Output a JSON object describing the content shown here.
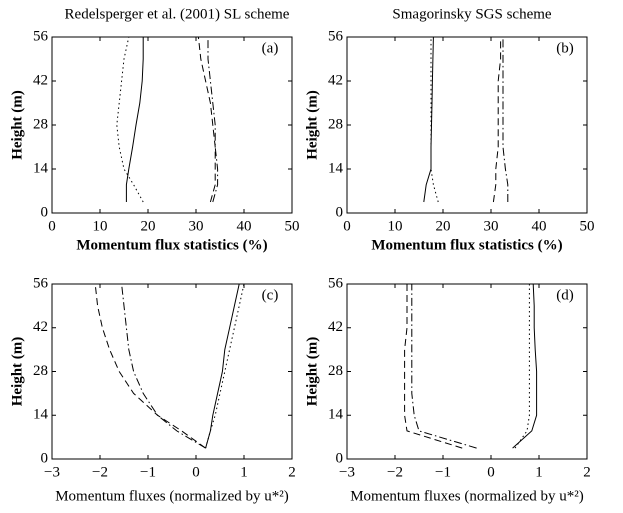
{
  "chart_data": [
    {
      "type": "line",
      "title": "Redelsperger et al. (2001) SL scheme",
      "panel_label": "(a)",
      "x_label": "Momentum flux statistics (%)",
      "y_label": "Height (m)",
      "y": [
        3.5,
        9,
        14,
        21,
        28,
        35,
        42,
        49,
        56
      ],
      "xlim": [
        0,
        50
      ],
      "xticks": [
        0,
        10,
        20,
        30,
        40,
        50
      ],
      "ylim": [
        0,
        56
      ],
      "yticks": [
        0,
        14,
        28,
        42,
        56
      ],
      "series": [
        {
          "color": "#000000",
          "dash": "solid",
          "values": [
            15.5,
            15.5,
            16,
            16.8,
            17.5,
            18.3,
            18.8,
            19,
            19
          ]
        },
        {
          "color": "#000000",
          "dash": "dotted",
          "values": [
            19,
            17,
            15,
            14,
            13.5,
            14,
            14.5,
            15,
            16
          ]
        },
        {
          "color": "#000000",
          "dash": "dashed",
          "values": [
            33,
            34,
            34,
            34,
            33.5,
            33,
            32,
            31,
            30.5
          ]
        },
        {
          "color": "#000000",
          "dash": "dashdot",
          "values": [
            33.5,
            34.5,
            34.5,
            34,
            34,
            33.5,
            33,
            32.5,
            32.5
          ]
        }
      ]
    },
    {
      "type": "line",
      "title": "Smagorinsky SGS scheme",
      "panel_label": "(b)",
      "x_label": "Momentum flux statistics (%)",
      "y_label": "Height (m)",
      "y": [
        3.5,
        9,
        14,
        21,
        28,
        35,
        42,
        49,
        56
      ],
      "xlim": [
        0,
        50
      ],
      "xticks": [
        0,
        10,
        20,
        30,
        40,
        50
      ],
      "ylim": [
        0,
        56
      ],
      "yticks": [
        0,
        14,
        28,
        42,
        56
      ],
      "series": [
        {
          "color": "#000000",
          "dash": "solid",
          "values": [
            16,
            16.5,
            17.5,
            17.5,
            17.6,
            17.7,
            17.8,
            17.9,
            18
          ]
        },
        {
          "color": "#000000",
          "dash": "dotted",
          "values": [
            19,
            18,
            17.5,
            17.5,
            17.5,
            17.5,
            17.5,
            17.5,
            17.5
          ]
        },
        {
          "color": "#000000",
          "dash": "dashed",
          "values": [
            30.5,
            31,
            31,
            31.5,
            31.5,
            31.5,
            31.5,
            32,
            32
          ]
        },
        {
          "color": "#000000",
          "dash": "dashdot",
          "values": [
            33.5,
            33.5,
            33,
            32.5,
            32.5,
            32.5,
            32.5,
            32.5,
            32.5
          ]
        }
      ]
    },
    {
      "type": "line",
      "panel_label": "(c)",
      "x_label": "Momentum fluxes (normalized by u*²)",
      "y_label": "Height (m)",
      "y": [
        3.5,
        9,
        14,
        21,
        28,
        35,
        42,
        49,
        56
      ],
      "xlim": [
        -3,
        2
      ],
      "xticks": [
        {
          "value": -3,
          "label": "−3"
        },
        {
          "value": -2,
          "label": "−2"
        },
        {
          "value": -1,
          "label": "−1"
        },
        0,
        1,
        2
      ],
      "ylim": [
        0,
        56
      ],
      "yticks": [
        0,
        14,
        28,
        42,
        56
      ],
      "series": [
        {
          "color": "#000000",
          "dash": "solid",
          "values": [
            0.2,
            0.3,
            0.35,
            0.45,
            0.55,
            0.6,
            0.7,
            0.8,
            0.9
          ]
        },
        {
          "color": "#000000",
          "dash": "dotted",
          "values": [
            0.2,
            0.3,
            0.4,
            0.5,
            0.6,
            0.7,
            0.8,
            0.9,
            1
          ]
        },
        {
          "color": "#000000",
          "dash": "dashed",
          "values": [
            0.2,
            -0.3,
            -0.8,
            -1.3,
            -1.6,
            -1.8,
            -1.95,
            -2.05,
            -2.1
          ]
        },
        {
          "color": "#000000",
          "dash": "dashdot",
          "values": [
            0.2,
            -0.4,
            -0.8,
            -1.1,
            -1.3,
            -1.4,
            -1.45,
            -1.5,
            -1.55
          ]
        }
      ]
    },
    {
      "type": "line",
      "panel_label": "(d)",
      "x_label": "Momentum fluxes (normalized by u*²)",
      "y_label": "Height (m)",
      "y": [
        3.5,
        9,
        14,
        21,
        28,
        35,
        42,
        49,
        56
      ],
      "xlim": [
        -3,
        2
      ],
      "xticks": [
        {
          "value": -3,
          "label": "−3"
        },
        {
          "value": -2,
          "label": "−2"
        },
        {
          "value": -1,
          "label": "−1"
        },
        0,
        1,
        2
      ],
      "ylim": [
        0,
        56
      ],
      "yticks": [
        0,
        14,
        28,
        42,
        56
      ],
      "series": [
        {
          "color": "#000000",
          "dash": "solid",
          "values": [
            0.45,
            0.85,
            0.95,
            0.95,
            0.95,
            0.92,
            0.9,
            0.9,
            0.88
          ]
        },
        {
          "color": "#000000",
          "dash": "dotted",
          "values": [
            0.5,
            0.75,
            0.8,
            0.8,
            0.8,
            0.8,
            0.8,
            0.8,
            0.8
          ]
        },
        {
          "color": "#000000",
          "dash": "dashed",
          "values": [
            -0.6,
            -1.75,
            -1.8,
            -1.8,
            -1.8,
            -1.8,
            -1.75,
            -1.75,
            -1.75
          ]
        },
        {
          "color": "#000000",
          "dash": "dashdot",
          "values": [
            -0.3,
            -1.5,
            -1.6,
            -1.65,
            -1.65,
            -1.65,
            -1.65,
            -1.65,
            -1.65
          ]
        }
      ]
    }
  ]
}
